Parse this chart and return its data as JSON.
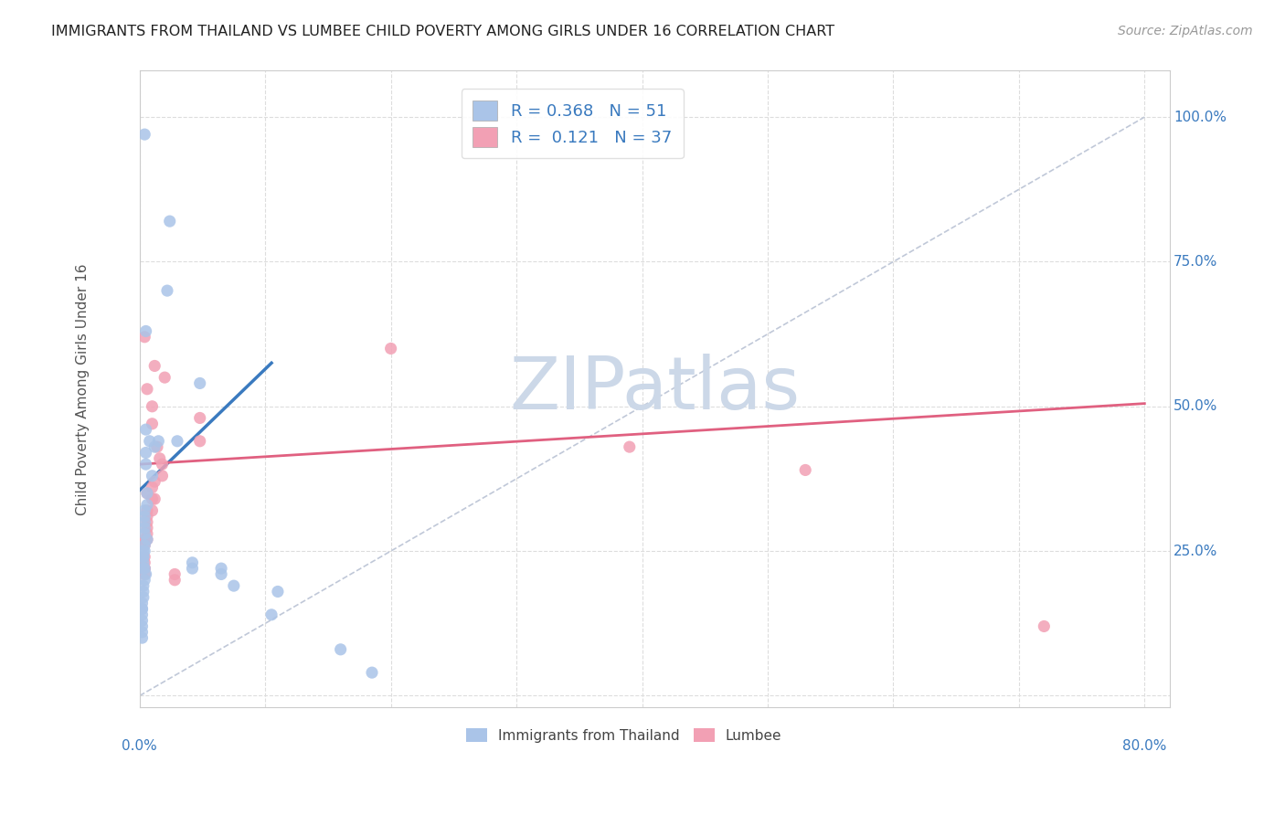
{
  "title": "IMMIGRANTS FROM THAILAND VS LUMBEE CHILD POVERTY AMONG GIRLS UNDER 16 CORRELATION CHART",
  "source": "Source: ZipAtlas.com",
  "ylabel": "Child Poverty Among Girls Under 16",
  "y_ticks": [
    0.0,
    0.25,
    0.5,
    0.75,
    1.0
  ],
  "y_tick_labels": [
    "",
    "25.0%",
    "50.0%",
    "75.0%",
    "100.0%"
  ],
  "legend_entries": [
    {
      "label": "Immigrants from Thailand",
      "R": "0.368",
      "N": "51",
      "color": "#aac4e8"
    },
    {
      "label": "Lumbee",
      "R": "0.121",
      "N": "37",
      "color": "#f2a0b4"
    }
  ],
  "blue_color": "#3a7abf",
  "pink_color": "#e06080",
  "blue_scatter": [
    [
      0.004,
      0.97
    ],
    [
      0.024,
      0.82
    ],
    [
      0.022,
      0.7
    ],
    [
      0.005,
      0.63
    ],
    [
      0.005,
      0.46
    ],
    [
      0.008,
      0.44
    ],
    [
      0.015,
      0.44
    ],
    [
      0.012,
      0.43
    ],
    [
      0.005,
      0.42
    ],
    [
      0.005,
      0.4
    ],
    [
      0.01,
      0.38
    ],
    [
      0.006,
      0.35
    ],
    [
      0.006,
      0.33
    ],
    [
      0.004,
      0.32
    ],
    [
      0.004,
      0.31
    ],
    [
      0.004,
      0.3
    ],
    [
      0.004,
      0.29
    ],
    [
      0.004,
      0.28
    ],
    [
      0.006,
      0.27
    ],
    [
      0.004,
      0.26
    ],
    [
      0.004,
      0.25
    ],
    [
      0.003,
      0.25
    ],
    [
      0.003,
      0.24
    ],
    [
      0.003,
      0.24
    ],
    [
      0.003,
      0.23
    ],
    [
      0.003,
      0.22
    ],
    [
      0.004,
      0.22
    ],
    [
      0.005,
      0.21
    ],
    [
      0.004,
      0.2
    ],
    [
      0.003,
      0.19
    ],
    [
      0.003,
      0.18
    ],
    [
      0.003,
      0.17
    ],
    [
      0.002,
      0.16
    ],
    [
      0.002,
      0.15
    ],
    [
      0.002,
      0.15
    ],
    [
      0.002,
      0.14
    ],
    [
      0.002,
      0.13
    ],
    [
      0.002,
      0.12
    ],
    [
      0.002,
      0.11
    ],
    [
      0.002,
      0.1
    ],
    [
      0.03,
      0.44
    ],
    [
      0.048,
      0.54
    ],
    [
      0.042,
      0.23
    ],
    [
      0.042,
      0.22
    ],
    [
      0.065,
      0.22
    ],
    [
      0.065,
      0.21
    ],
    [
      0.075,
      0.19
    ],
    [
      0.11,
      0.18
    ],
    [
      0.105,
      0.14
    ],
    [
      0.16,
      0.08
    ],
    [
      0.185,
      0.04
    ]
  ],
  "pink_scatter": [
    [
      0.004,
      0.62
    ],
    [
      0.012,
      0.57
    ],
    [
      0.02,
      0.55
    ],
    [
      0.006,
      0.53
    ],
    [
      0.01,
      0.5
    ],
    [
      0.01,
      0.47
    ],
    [
      0.014,
      0.43
    ],
    [
      0.016,
      0.41
    ],
    [
      0.018,
      0.4
    ],
    [
      0.018,
      0.38
    ],
    [
      0.012,
      0.37
    ],
    [
      0.01,
      0.36
    ],
    [
      0.006,
      0.35
    ],
    [
      0.012,
      0.34
    ],
    [
      0.01,
      0.34
    ],
    [
      0.01,
      0.32
    ],
    [
      0.006,
      0.32
    ],
    [
      0.006,
      0.31
    ],
    [
      0.006,
      0.3
    ],
    [
      0.006,
      0.29
    ],
    [
      0.006,
      0.28
    ],
    [
      0.006,
      0.27
    ],
    [
      0.004,
      0.27
    ],
    [
      0.004,
      0.26
    ],
    [
      0.004,
      0.24
    ],
    [
      0.004,
      0.23
    ],
    [
      0.004,
      0.22
    ],
    [
      0.004,
      0.22
    ],
    [
      0.004,
      0.21
    ],
    [
      0.028,
      0.21
    ],
    [
      0.028,
      0.2
    ],
    [
      0.048,
      0.48
    ],
    [
      0.048,
      0.44
    ],
    [
      0.2,
      0.6
    ],
    [
      0.39,
      0.43
    ],
    [
      0.53,
      0.39
    ],
    [
      0.72,
      0.12
    ]
  ],
  "blue_line_x": [
    0.0,
    0.105
  ],
  "blue_line_y": [
    0.355,
    0.575
  ],
  "pink_line_x": [
    0.0,
    0.8
  ],
  "pink_line_y": [
    0.4,
    0.505
  ],
  "diag_line_x": [
    0.0,
    0.8
  ],
  "diag_line_y": [
    0.0,
    1.0
  ],
  "xlim": [
    0.0,
    0.82
  ],
  "ylim": [
    -0.02,
    1.08
  ],
  "background_color": "#ffffff",
  "grid_color": "#dddddd",
  "title_color": "#222222",
  "source_color": "#999999",
  "axis_label_color": "#3a7abf",
  "watermark_color": "#ccd8e8",
  "watermark_text": "ZIPatlas",
  "watermark_fontsize": 58,
  "title_fontsize": 11.5,
  "source_fontsize": 10,
  "legend_fontsize": 13,
  "scatter_size": 90
}
